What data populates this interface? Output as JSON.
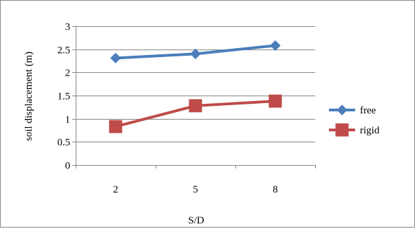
{
  "chart_data": {
    "type": "line",
    "categories": [
      "2",
      "5",
      "8"
    ],
    "series": [
      {
        "name": "free",
        "values": [
          2.31,
          2.4,
          2.58
        ],
        "color": "#4a7ebb",
        "marker": "diamond"
      },
      {
        "name": "rigid",
        "values": [
          0.83,
          1.28,
          1.38
        ],
        "color": "#be4b48",
        "marker": "square"
      }
    ],
    "title": "",
    "xlabel": "S/D",
    "ylabel": "soil displacement (m)",
    "ylim": [
      0,
      3
    ],
    "yticks": [
      "0",
      "0.5",
      "1",
      "1.5",
      "2",
      "2.5",
      "3"
    ],
    "grid": true,
    "legend": "right"
  }
}
